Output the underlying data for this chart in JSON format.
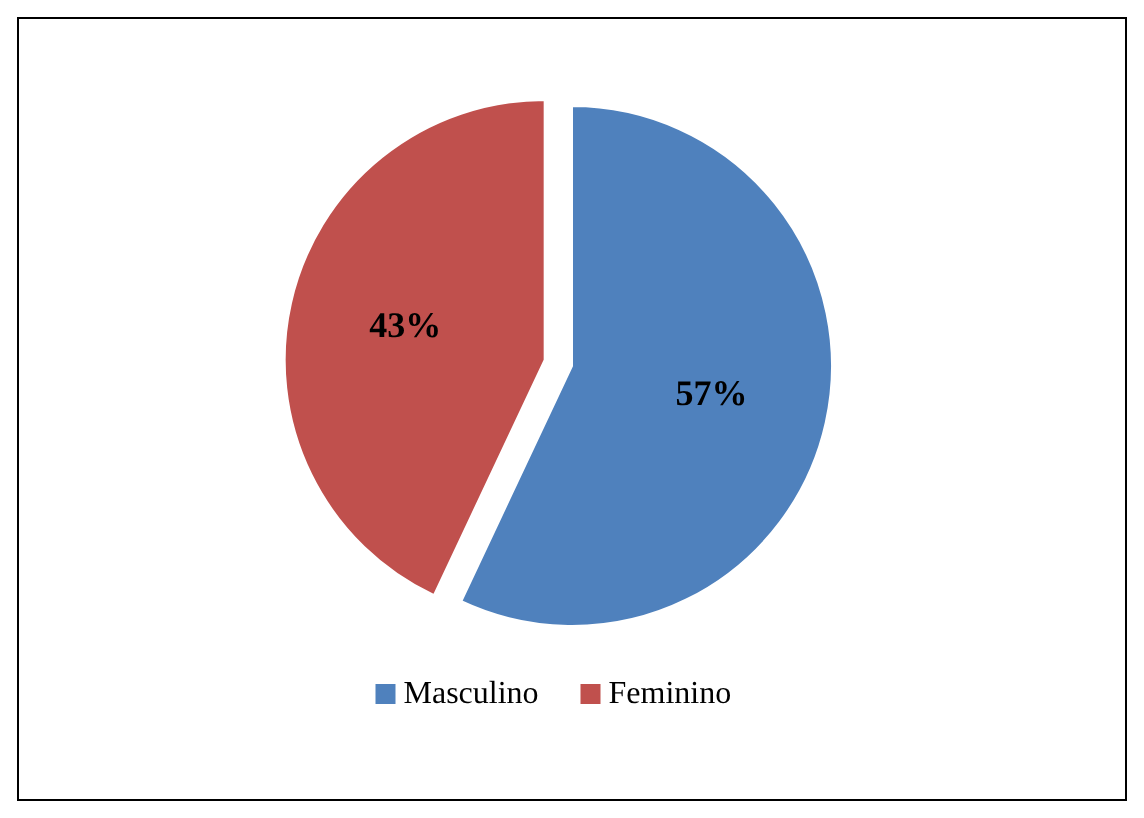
{
  "chart_data": {
    "type": "pie",
    "categories": [
      "Masculino",
      "Feminino"
    ],
    "values": [
      57,
      43
    ],
    "colors": [
      "#4f81bd",
      "#c0504d"
    ],
    "value_labels": [
      "57%",
      "43%"
    ],
    "legend": "bottom"
  }
}
